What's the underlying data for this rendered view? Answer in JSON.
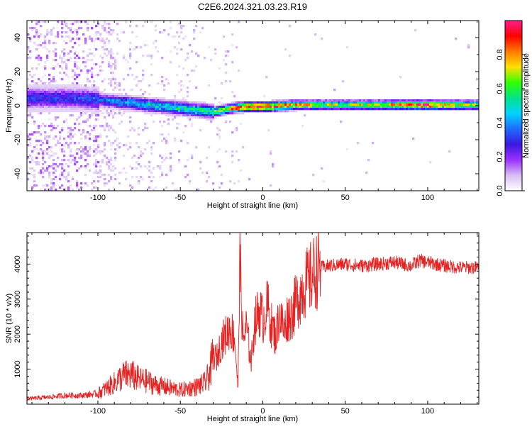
{
  "title": "C2E6.2024.321.03.23.R19",
  "colors": {
    "snr_line": "#e52222",
    "spectrogram_gradient": [
      "#ffffff",
      "#d9bdf3",
      "#9b30ff",
      "#3a18e0",
      "#1f6cff",
      "#00d4ff",
      "#00e38a",
      "#33ff00",
      "#ffe000",
      "#ff7a00",
      "#ff0000",
      "#ff1f8c"
    ]
  },
  "chart_data": [
    {
      "type": "heatmap",
      "title": "C2E6.2024.321.03.23.R19",
      "xlabel": "Height of straight line (km)",
      "ylabel": "Frequency (Hz)",
      "xlim": [
        -143,
        131
      ],
      "ylim": [
        -50,
        50
      ],
      "x_ticks": [
        -100,
        -50,
        0,
        50,
        100
      ],
      "y_ticks": [
        -40,
        -20,
        0,
        20,
        40
      ],
      "colorbar": {
        "label": "Normalized spectral amplitude",
        "range": [
          0,
          1
        ],
        "ticks": [
          "0.0",
          "0.2",
          "0.4",
          "0.6",
          "0.8"
        ]
      },
      "ridge": {
        "description_points_x": [
          -120,
          -100,
          -80,
          -60,
          -40,
          -30,
          -20,
          -10,
          0,
          20,
          50,
          100,
          131
        ],
        "center_freq_hz": [
          5,
          4,
          2,
          0,
          -2,
          -3,
          -1,
          0,
          0,
          1,
          1,
          1,
          1
        ],
        "peak_amplitude": [
          0.3,
          0.35,
          0.45,
          0.5,
          0.55,
          0.6,
          0.85,
          0.9,
          0.95,
          0.75,
          0.65,
          0.9,
          0.6
        ]
      }
    },
    {
      "type": "line",
      "xlabel": "Height of straight line (km)",
      "ylabel": "SNR (10 * v/v)",
      "xlim": [
        -143,
        131
      ],
      "ylim": [
        0,
        4900
      ],
      "x_ticks": [
        -100,
        -50,
        0,
        50,
        100
      ],
      "y_ticks": [
        1000,
        2000,
        3000,
        4000
      ],
      "series": [
        {
          "x": [
            -143,
            -130,
            -120,
            -110,
            -100,
            -95,
            -90,
            -85,
            -80,
            -75,
            -70,
            -65,
            -60,
            -55,
            -50,
            -45,
            -40,
            -35,
            -32,
            -30,
            -28,
            -25,
            -22,
            -20,
            -17,
            -15,
            -14,
            -12,
            -10,
            -7,
            -5,
            -2,
            0,
            3,
            5,
            8,
            10,
            13,
            15,
            18,
            20,
            23,
            25,
            28,
            30,
            35,
            40,
            50,
            60,
            70,
            80,
            90,
            95,
            100,
            110,
            120,
            131
          ],
          "values": [
            150,
            200,
            250,
            250,
            300,
            450,
            600,
            800,
            850,
            700,
            650,
            550,
            500,
            450,
            400,
            450,
            500,
            600,
            900,
            1400,
            1300,
            1800,
            2000,
            2200,
            1900,
            400,
            4200,
            1800,
            2200,
            1200,
            2300,
            2700,
            2400,
            2800,
            2300,
            1900,
            2600,
            2100,
            2500,
            2600,
            2900,
            3200,
            3400,
            3500,
            3700,
            3900,
            3950,
            4000,
            3950,
            4000,
            4050,
            3950,
            4100,
            4050,
            3950,
            3900,
            3900
          ]
        }
      ]
    }
  ]
}
